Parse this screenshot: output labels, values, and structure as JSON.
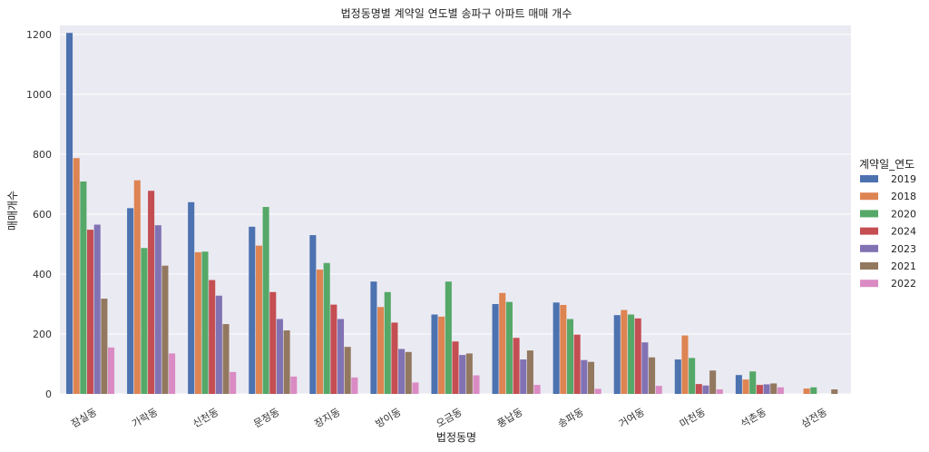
{
  "chart_data": {
    "type": "bar",
    "title": "법정동명별 계약일 연도별 송파구 아파트 매매 개수",
    "xlabel": "법정동명",
    "ylabel": "매매개수",
    "ylim": [
      0,
      1230
    ],
    "yticks": [
      0,
      200,
      400,
      600,
      800,
      1000,
      1200
    ],
    "grid": true,
    "legend_title": "계약일_연도",
    "legend_position": "right",
    "categories": [
      "잠실동",
      "가락동",
      "신천동",
      "문정동",
      "장지동",
      "방이동",
      "오금동",
      "풍납동",
      "송파동",
      "거여동",
      "마천동",
      "석촌동",
      "삼전동"
    ],
    "series": [
      {
        "name": "2019",
        "color": "#4c72b0",
        "values": [
          1205,
          620,
          640,
          558,
          530,
          375,
          265,
          300,
          305,
          263,
          115,
          63,
          0
        ]
      },
      {
        "name": "2018",
        "color": "#dd8452",
        "values": [
          787,
          713,
          473,
          495,
          415,
          290,
          258,
          337,
          297,
          280,
          195,
          48,
          18
        ]
      },
      {
        "name": "2020",
        "color": "#55a868",
        "values": [
          709,
          487,
          475,
          624,
          437,
          340,
          375,
          307,
          250,
          265,
          120,
          75,
          22
        ]
      },
      {
        "name": "2024",
        "color": "#c44e52",
        "values": [
          548,
          678,
          380,
          340,
          298,
          238,
          175,
          187,
          198,
          252,
          33,
          30,
          0
        ]
      },
      {
        "name": "2023",
        "color": "#8172b3",
        "values": [
          565,
          563,
          328,
          250,
          250,
          150,
          130,
          115,
          113,
          172,
          28,
          32,
          0
        ]
      },
      {
        "name": "2021",
        "color": "#937860",
        "values": [
          318,
          428,
          233,
          212,
          157,
          140,
          135,
          145,
          107,
          122,
          78,
          35,
          15
        ]
      },
      {
        "name": "2022",
        "color": "#da8bc3",
        "values": [
          155,
          135,
          73,
          58,
          55,
          38,
          62,
          30,
          17,
          27,
          15,
          22,
          0
        ]
      }
    ]
  }
}
